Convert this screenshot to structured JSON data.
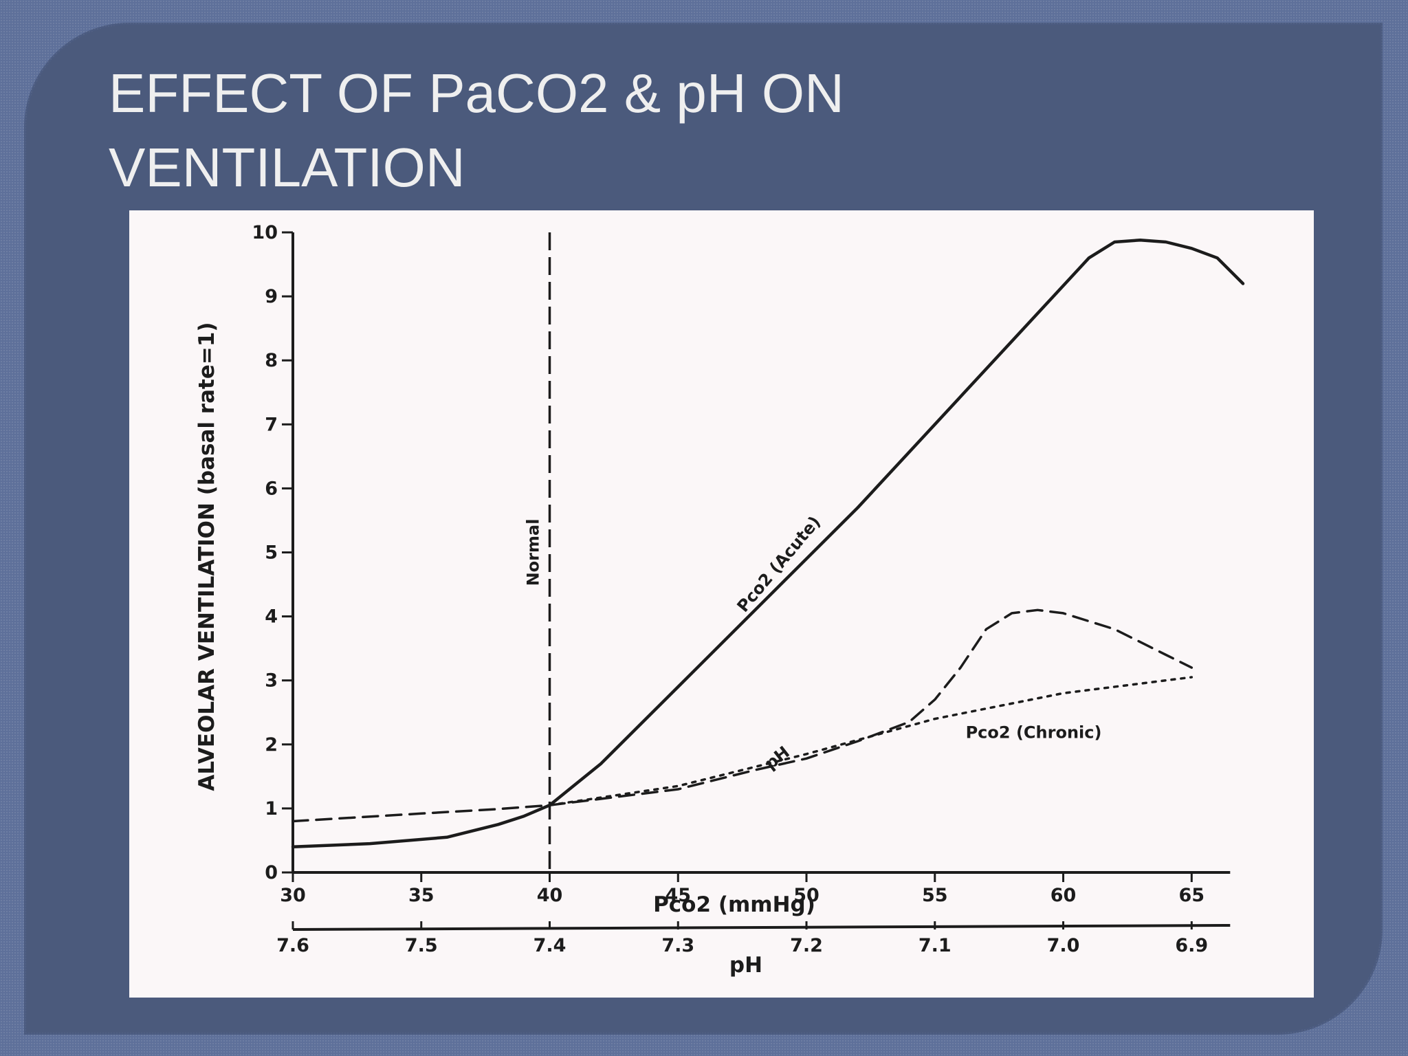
{
  "slide": {
    "title_line1": "EFFECT OF PaCO2 & pH ON",
    "title_line2": "VENTILATION"
  },
  "colors": {
    "background": "#5e709a",
    "panel": "#4b5a7c",
    "title_text": "#efefef",
    "figure_background": "#fbf7f8",
    "ink": "#1c1c1c"
  },
  "chart_data": {
    "type": "line",
    "title": "",
    "xlabel": "Pco2 (mmHg)",
    "x2label": "pH",
    "ylabel": "ALVEOLAR VENTILATION (basal rate=1)",
    "xlim": [
      30,
      67
    ],
    "ylim": [
      0,
      10
    ],
    "x_ticks": [
      30,
      35,
      40,
      45,
      50,
      55,
      60,
      65
    ],
    "x_tick_labels": [
      "30",
      "35",
      "40",
      "45",
      "50",
      "55",
      "60",
      "65"
    ],
    "y_ticks": [
      0,
      1,
      2,
      3,
      4,
      5,
      6,
      7,
      8,
      9,
      10
    ],
    "y_tick_labels": [
      "0",
      "1",
      "2",
      "3",
      "4",
      "5",
      "6",
      "7",
      "8",
      "9",
      "10"
    ],
    "ph_ticks": [
      {
        "pco2": 30,
        "label": "7.6"
      },
      {
        "pco2": 35,
        "label": "7.5"
      },
      {
        "pco2": 40,
        "label": "7.4"
      },
      {
        "pco2": 45,
        "label": "7.3"
      },
      {
        "pco2": 50,
        "label": "7.2"
      },
      {
        "pco2": 55,
        "label": "7.1"
      },
      {
        "pco2": 60,
        "label": "7.0"
      },
      {
        "pco2": 65,
        "label": "6.9"
      }
    ],
    "reference_line": {
      "x": 40,
      "label": "Normal"
    },
    "grid": false,
    "series": [
      {
        "name": "Pco2 (Acute)",
        "style": "solid",
        "x": [
          30,
          33,
          36,
          38,
          39,
          40,
          42,
          45,
          48,
          50,
          52,
          55,
          58,
          61,
          62,
          63,
          64,
          65,
          66,
          67
        ],
        "y": [
          0.4,
          0.45,
          0.55,
          0.75,
          0.88,
          1.05,
          1.7,
          2.9,
          4.1,
          4.9,
          5.7,
          7.0,
          8.3,
          9.6,
          9.85,
          9.88,
          9.85,
          9.75,
          9.6,
          9.2
        ]
      },
      {
        "name": "pH",
        "style": "dashed",
        "x": [
          30,
          35,
          38,
          40,
          45,
          48,
          50,
          52,
          54,
          55,
          56,
          57,
          58,
          59,
          60,
          62,
          64,
          65
        ],
        "y": [
          0.8,
          0.92,
          0.99,
          1.05,
          1.3,
          1.6,
          1.78,
          2.05,
          2.35,
          2.7,
          3.2,
          3.8,
          4.05,
          4.1,
          4.05,
          3.8,
          3.4,
          3.2
        ]
      },
      {
        "name": "Pco2 (Chronic)",
        "style": "dotted",
        "x": [
          40,
          45,
          50,
          55,
          60,
          65
        ],
        "y": [
          1.05,
          1.35,
          1.85,
          2.4,
          2.8,
          3.05
        ]
      }
    ],
    "annotations": [
      {
        "text": "Pco2 (Acute)",
        "series": "Pco2 (Acute)"
      },
      {
        "text": "pH",
        "series": "pH"
      },
      {
        "text": "Pco2 (Chronic)",
        "series": "Pco2 (Chronic)"
      }
    ]
  }
}
